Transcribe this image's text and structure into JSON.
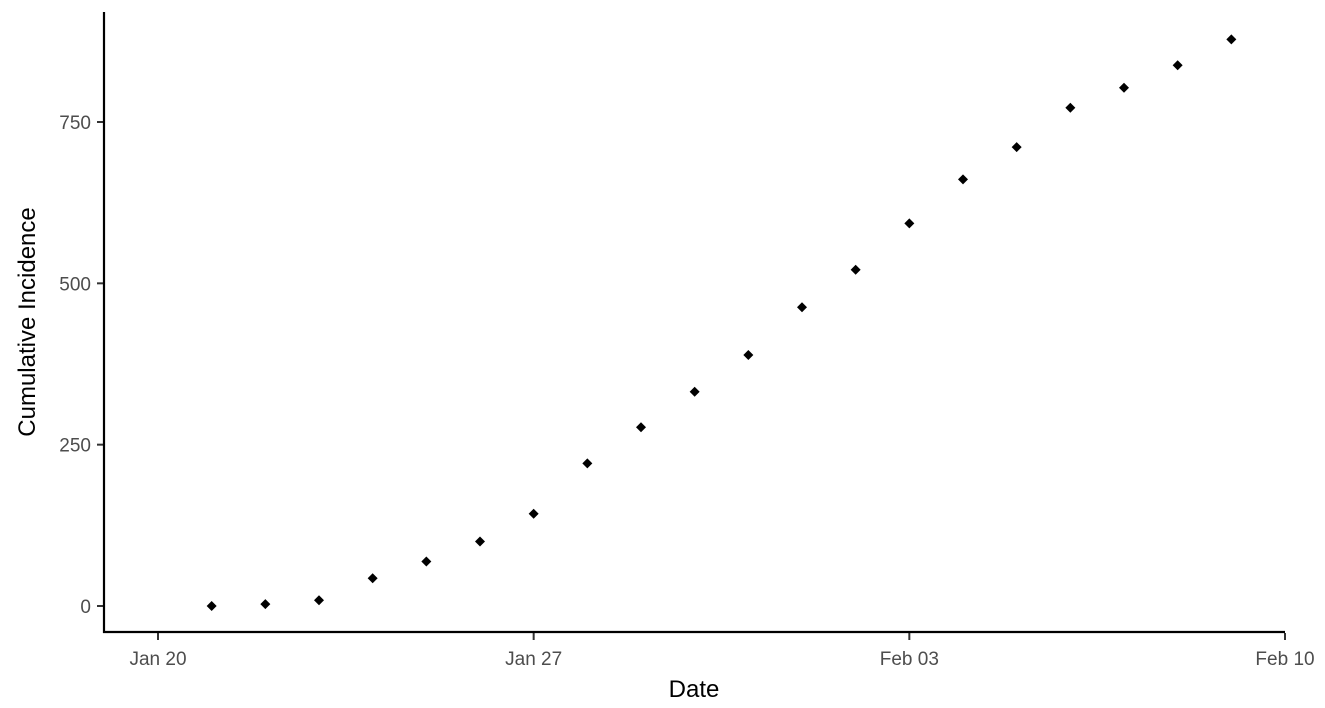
{
  "chart_data": {
    "type": "scatter",
    "title": "",
    "xlabel": "Date",
    "ylabel": "Cumulative Incidence",
    "x_ticks": [
      "Jan 20",
      "Jan 27",
      "Feb 03",
      "Feb 10"
    ],
    "y_ticks": [
      "0",
      "250",
      "500",
      "750"
    ],
    "x_tick_dates": [
      "2020-01-20",
      "2020-01-27",
      "2020-02-03",
      "2020-02-10"
    ],
    "y_tick_values": [
      0,
      250,
      500,
      750
    ],
    "xlim": [
      "2020-01-20",
      "2020-02-10"
    ],
    "ylim": [
      0,
      880
    ],
    "grid": false,
    "legend": "none",
    "marker": "diamond",
    "marker_color": "#000000",
    "series": [
      {
        "points": [
          {
            "x": "2020-01-21",
            "y": 0
          },
          {
            "x": "2020-01-22",
            "y": 3
          },
          {
            "x": "2020-01-23",
            "y": 9
          },
          {
            "x": "2020-01-24",
            "y": 43
          },
          {
            "x": "2020-01-25",
            "y": 69
          },
          {
            "x": "2020-01-26",
            "y": 100
          },
          {
            "x": "2020-01-27",
            "y": 143
          },
          {
            "x": "2020-01-28",
            "y": 221
          },
          {
            "x": "2020-01-29",
            "y": 277
          },
          {
            "x": "2020-01-30",
            "y": 332
          },
          {
            "x": "2020-01-31",
            "y": 389
          },
          {
            "x": "2020-02-01",
            "y": 463
          },
          {
            "x": "2020-02-02",
            "y": 521
          },
          {
            "x": "2020-02-03",
            "y": 593
          },
          {
            "x": "2020-02-04",
            "y": 661
          },
          {
            "x": "2020-02-05",
            "y": 711
          },
          {
            "x": "2020-02-06",
            "y": 772
          },
          {
            "x": "2020-02-07",
            "y": 803
          },
          {
            "x": "2020-02-08",
            "y": 838
          },
          {
            "x": "2020-02-09",
            "y": 878
          }
        ]
      }
    ]
  }
}
